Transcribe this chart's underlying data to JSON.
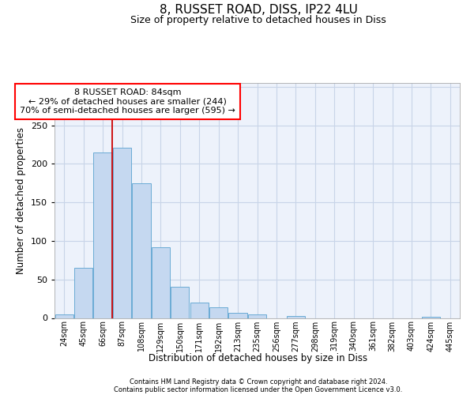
{
  "title": "8, RUSSET ROAD, DISS, IP22 4LU",
  "subtitle": "Size of property relative to detached houses in Diss",
  "xlabel": "Distribution of detached houses by size in Diss",
  "ylabel": "Number of detached properties",
  "footnote1": "Contains HM Land Registry data © Crown copyright and database right 2024.",
  "footnote2": "Contains public sector information licensed under the Open Government Licence v3.0.",
  "ann_line1": "8 RUSSET ROAD: 84sqm",
  "ann_line2": "← 29% of detached houses are smaller (244)",
  "ann_line3": "70% of semi-detached houses are larger (595) →",
  "bar_labels": [
    "24sqm",
    "45sqm",
    "66sqm",
    "87sqm",
    "108sqm",
    "129sqm",
    "150sqm",
    "171sqm",
    "192sqm",
    "213sqm",
    "235sqm",
    "256sqm",
    "277sqm",
    "298sqm",
    "319sqm",
    "340sqm",
    "361sqm",
    "382sqm",
    "403sqm",
    "424sqm",
    "445sqm"
  ],
  "bar_values": [
    5,
    65,
    215,
    221,
    175,
    92,
    40,
    20,
    14,
    7,
    5,
    0,
    3,
    0,
    0,
    0,
    0,
    0,
    0,
    2,
    0
  ],
  "bar_color": "#c5d8f0",
  "bar_edge_color": "#6aabd4",
  "grid_color": "#c8d4e8",
  "bg_color": "#edf2fb",
  "vline_color": "#cc0000",
  "vline_x": 2.5,
  "ylim_max": 305,
  "ytick_step": 50
}
